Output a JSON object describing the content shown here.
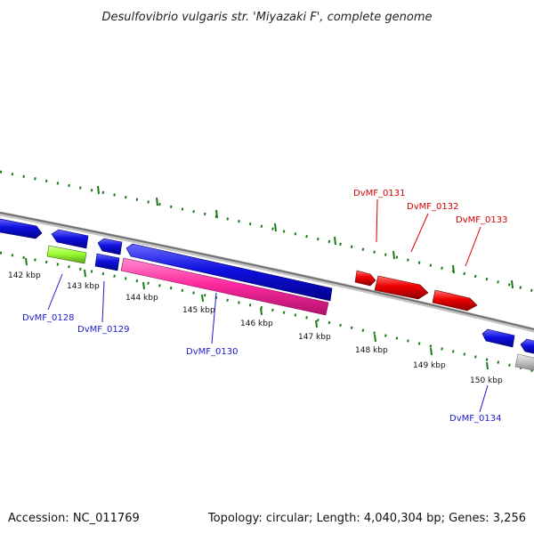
{
  "header": {
    "title": "Desulfovibrio vulgaris str. 'Miyazaki F', complete genome"
  },
  "footer": {
    "accession": "Accession: NC_011769",
    "summary": "Topology: circular; Length: 4,040,304 bp; Genes: 3,256"
  },
  "colors": {
    "background": "#ffffff",
    "backbone": "#808080",
    "tick": "#1a7a1a",
    "label_blue": "#1a1acc",
    "label_red": "#d40000",
    "gene_blue": "#1010e0",
    "gene_red": "#ee0000",
    "gene_pink": "#ff2aa0",
    "gene_green": "#99ff33",
    "gene_gray": "#bdbdbd"
  },
  "ruler": {
    "unit": "kbp",
    "labels": [
      "142 kbp",
      "143 kbp",
      "144 kbp",
      "145 kbp",
      "146 kbp",
      "147 kbp",
      "148 kbp",
      "149 kbp",
      "150 kbp"
    ]
  },
  "genes": [
    {
      "name": "DvMF_0128",
      "color": "label_blue"
    },
    {
      "name": "DvMF_0129",
      "color": "label_blue"
    },
    {
      "name": "DvMF_0130",
      "color": "label_blue"
    },
    {
      "name": "DvMF_0131",
      "color": "label_red"
    },
    {
      "name": "DvMF_0132",
      "color": "label_red"
    },
    {
      "name": "DvMF_0133",
      "color": "label_red"
    },
    {
      "name": "DvMF_0134",
      "color": "label_blue"
    }
  ]
}
